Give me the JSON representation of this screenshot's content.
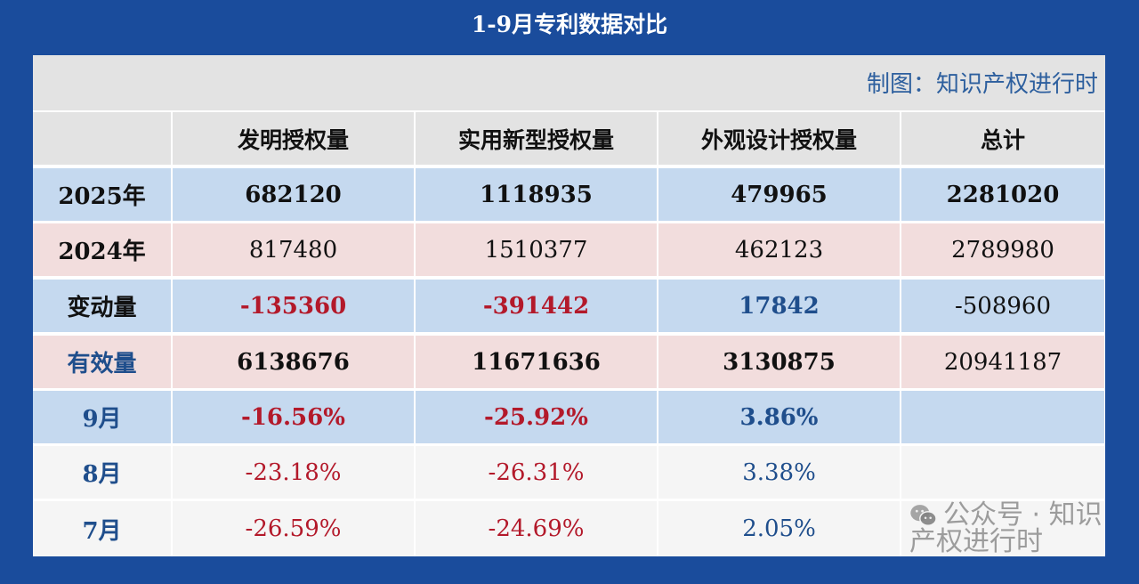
{
  "title": "1-9月专利数据对比",
  "caption": "制图：知识产权进行时",
  "columns": [
    "",
    "发明授权量",
    "实用新型授权量",
    "外观设计授权量",
    "总计"
  ],
  "rows": [
    {
      "label": "2025年",
      "values": [
        "682120",
        "1118935",
        "479965",
        "2281020"
      ]
    },
    {
      "label": "2024年",
      "values": [
        "817480",
        "1510377",
        "462123",
        "2789980"
      ]
    },
    {
      "label": "变动量",
      "values": [
        "-135360",
        "-391442",
        "17842",
        "-508960"
      ]
    },
    {
      "label": "有效量",
      "values": [
        "6138676",
        "11671636",
        "3130875",
        "20941187"
      ]
    },
    {
      "label": "9月",
      "values": [
        "-16.56%",
        "-25.92%",
        "3.86%",
        ""
      ]
    },
    {
      "label": "8月",
      "values": [
        "-23.18%",
        "-26.31%",
        "3.38%",
        ""
      ]
    },
    {
      "label": "7月",
      "values": [
        "-26.59%",
        "-24.69%",
        "2.05%",
        ""
      ]
    }
  ],
  "colors": {
    "background": "#1a4c9c",
    "row_blue": "#c5d9ef",
    "row_pink": "#f2dddd",
    "negative": "#b3192a",
    "positive": "#1f4e8c"
  },
  "watermark": {
    "icon": "wechat-icon",
    "text": "公众号 · 知识产权进行时"
  }
}
